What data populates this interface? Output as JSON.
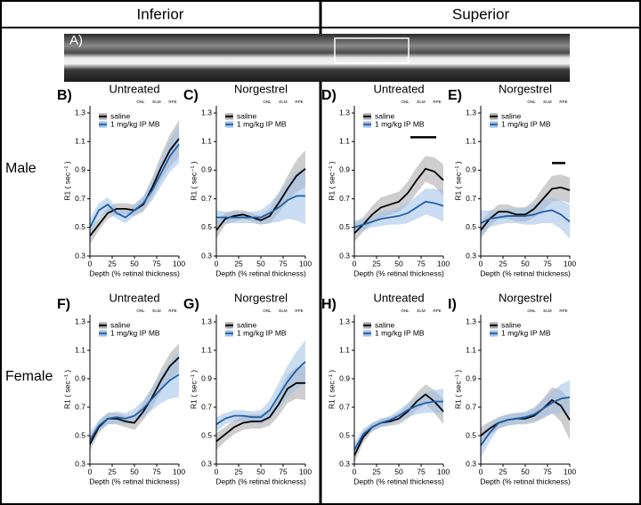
{
  "figure": {
    "columns": [
      "Inferior",
      "Superior"
    ],
    "rows": [
      "Male",
      "Female"
    ],
    "image_label": "A)"
  },
  "chart_data": [
    {
      "type": "line",
      "panel": "B)",
      "title": "Untreated",
      "xlabel": "Depth (% retinal thickness)",
      "ylabel": "R1 ( sec⁻¹ )",
      "x": [
        0,
        10,
        20,
        30,
        40,
        50,
        60,
        70,
        80,
        90,
        100
      ],
      "xlim": [
        0,
        100
      ],
      "xticks": [
        0,
        25,
        50,
        75,
        100
      ],
      "ylim": [
        0.3,
        1.35
      ],
      "yticks": [
        0.3,
        0.5,
        0.7,
        0.9,
        1.1,
        1.3
      ],
      "layers": [
        {
          "text": "ONL",
          "x": 57
        },
        {
          "text": "ELM",
          "x": 75
        },
        {
          "text": "RPE",
          "x": 93
        }
      ],
      "legend": "upper left",
      "series": [
        {
          "name": "saline",
          "color": "#000000",
          "band_color": "#a6a6a6",
          "values": [
            0.44,
            0.52,
            0.6,
            0.63,
            0.63,
            0.62,
            0.66,
            0.78,
            0.92,
            1.04,
            1.12
          ],
          "errors": [
            0.06,
            0.04,
            0.04,
            0.04,
            0.04,
            0.04,
            0.05,
            0.07,
            0.09,
            0.11,
            0.13
          ]
        },
        {
          "name": "1 mg/kg IP MB",
          "color": "#1f5fa8",
          "band_color": "#9fbfe6",
          "values": [
            0.5,
            0.62,
            0.66,
            0.6,
            0.57,
            0.62,
            0.67,
            0.76,
            0.88,
            1.0,
            1.08
          ],
          "errors": [
            0.06,
            0.05,
            0.05,
            0.04,
            0.04,
            0.04,
            0.05,
            0.07,
            0.09,
            0.11,
            0.13
          ]
        }
      ]
    },
    {
      "type": "line",
      "panel": "C)",
      "title": "Norgestrel",
      "xlabel": "Depth (% retinal thickness)",
      "ylabel": "R1 ( sec⁻¹ )",
      "x": [
        0,
        10,
        20,
        30,
        40,
        50,
        60,
        70,
        80,
        90,
        100
      ],
      "xlim": [
        0,
        100
      ],
      "xticks": [
        0,
        25,
        50,
        75,
        100
      ],
      "ylim": [
        0.3,
        1.35
      ],
      "yticks": [
        0.3,
        0.5,
        0.7,
        0.9,
        1.1,
        1.3
      ],
      "layers": [
        {
          "text": "ONL",
          "x": 57
        },
        {
          "text": "ELM",
          "x": 75
        },
        {
          "text": "RPE",
          "x": 93
        }
      ],
      "legend": "upper left",
      "series": [
        {
          "name": "saline",
          "color": "#000000",
          "band_color": "#a6a6a6",
          "values": [
            0.48,
            0.56,
            0.58,
            0.59,
            0.57,
            0.55,
            0.58,
            0.67,
            0.77,
            0.86,
            0.91
          ],
          "errors": [
            0.06,
            0.04,
            0.04,
            0.03,
            0.03,
            0.03,
            0.05,
            0.07,
            0.09,
            0.11,
            0.13
          ]
        },
        {
          "name": "1 mg/kg IP MB",
          "color": "#1f5fa8",
          "band_color": "#9fbfe6",
          "values": [
            0.57,
            0.57,
            0.57,
            0.57,
            0.57,
            0.57,
            0.6,
            0.64,
            0.69,
            0.72,
            0.72
          ],
          "errors": [
            0.05,
            0.04,
            0.04,
            0.04,
            0.04,
            0.05,
            0.07,
            0.1,
            0.13,
            0.17,
            0.2
          ]
        }
      ]
    },
    {
      "type": "line",
      "panel": "D)",
      "title": "Untreated",
      "xlabel": "Depth (% retinal thickness)",
      "ylabel": "R1 ( sec⁻¹ )",
      "x": [
        0,
        10,
        20,
        30,
        40,
        50,
        60,
        70,
        80,
        90,
        100
      ],
      "xlim": [
        0,
        100
      ],
      "xticks": [
        0,
        25,
        50,
        75,
        100
      ],
      "ylim": [
        0.3,
        1.35
      ],
      "yticks": [
        0.3,
        0.5,
        0.7,
        0.9,
        1.1,
        1.3
      ],
      "layers": [
        {
          "text": "ONL",
          "x": 57
        },
        {
          "text": "ELM",
          "x": 75
        },
        {
          "text": "RPE",
          "x": 93
        }
      ],
      "legend": "upper left",
      "significance": [
        {
          "x": [
            63,
            92
          ],
          "y": 1.13
        }
      ],
      "series": [
        {
          "name": "saline",
          "color": "#000000",
          "band_color": "#a6a6a6",
          "values": [
            0.46,
            0.52,
            0.59,
            0.64,
            0.66,
            0.68,
            0.74,
            0.83,
            0.91,
            0.89,
            0.83
          ],
          "errors": [
            0.06,
            0.05,
            0.06,
            0.07,
            0.07,
            0.07,
            0.08,
            0.09,
            0.09,
            0.1,
            0.11
          ]
        },
        {
          "name": "1 mg/kg IP MB",
          "color": "#1f5fa8",
          "band_color": "#9fbfe6",
          "values": [
            0.5,
            0.52,
            0.54,
            0.56,
            0.57,
            0.58,
            0.6,
            0.64,
            0.68,
            0.67,
            0.65
          ],
          "errors": [
            0.05,
            0.04,
            0.04,
            0.05,
            0.05,
            0.06,
            0.07,
            0.08,
            0.09,
            0.1,
            0.11
          ]
        }
      ]
    },
    {
      "type": "line",
      "panel": "E)",
      "title": "Norgestrel",
      "xlabel": "Depth (% retinal thickness)",
      "ylabel": "R1 ( sec⁻¹ )",
      "x": [
        0,
        10,
        20,
        30,
        40,
        50,
        60,
        70,
        80,
        90,
        100
      ],
      "xlim": [
        0,
        100
      ],
      "xticks": [
        0,
        25,
        50,
        75,
        100
      ],
      "ylim": [
        0.3,
        1.35
      ],
      "yticks": [
        0.3,
        0.5,
        0.7,
        0.9,
        1.1,
        1.3
      ],
      "layers": [
        {
          "text": "ONL",
          "x": 57
        },
        {
          "text": "ELM",
          "x": 75
        },
        {
          "text": "RPE",
          "x": 93
        }
      ],
      "legend": "upper left",
      "significance": [
        {
          "x": [
            80,
            95
          ],
          "y": 0.95
        }
      ],
      "series": [
        {
          "name": "saline",
          "color": "#000000",
          "band_color": "#a6a6a6",
          "values": [
            0.48,
            0.56,
            0.61,
            0.61,
            0.59,
            0.59,
            0.63,
            0.7,
            0.77,
            0.78,
            0.76
          ],
          "errors": [
            0.06,
            0.05,
            0.05,
            0.05,
            0.05,
            0.05,
            0.06,
            0.08,
            0.09,
            0.09,
            0.09
          ]
        },
        {
          "name": "1 mg/kg IP MB",
          "color": "#1f5fa8",
          "band_color": "#9fbfe6",
          "values": [
            0.53,
            0.56,
            0.57,
            0.58,
            0.58,
            0.58,
            0.59,
            0.61,
            0.62,
            0.59,
            0.54
          ],
          "errors": [
            0.09,
            0.06,
            0.05,
            0.05,
            0.05,
            0.06,
            0.07,
            0.08,
            0.09,
            0.1,
            0.12
          ]
        }
      ]
    },
    {
      "type": "line",
      "panel": "F)",
      "title": "Untreated",
      "xlabel": "Depth (% retinal thickness)",
      "ylabel": "R1 ( sec⁻¹ )",
      "x": [
        0,
        10,
        20,
        30,
        40,
        50,
        60,
        70,
        80,
        90,
        100
      ],
      "xlim": [
        0,
        100
      ],
      "xticks": [
        0,
        25,
        50,
        75,
        100
      ],
      "ylim": [
        0.3,
        1.35
      ],
      "yticks": [
        0.3,
        0.5,
        0.7,
        0.9,
        1.1,
        1.3
      ],
      "layers": [
        {
          "text": "ONL",
          "x": 57
        },
        {
          "text": "ELM",
          "x": 75
        },
        {
          "text": "RPE",
          "x": 93
        }
      ],
      "legend": "upper left",
      "series": [
        {
          "name": "saline",
          "color": "#000000",
          "band_color": "#a6a6a6",
          "values": [
            0.44,
            0.56,
            0.62,
            0.62,
            0.6,
            0.59,
            0.67,
            0.77,
            0.89,
            0.99,
            1.05
          ],
          "errors": [
            0.05,
            0.04,
            0.04,
            0.04,
            0.04,
            0.05,
            0.06,
            0.07,
            0.08,
            0.09,
            0.1
          ]
        },
        {
          "name": "1 mg/kg IP MB",
          "color": "#1f5fa8",
          "band_color": "#9fbfe6",
          "values": [
            0.47,
            0.57,
            0.62,
            0.63,
            0.62,
            0.64,
            0.69,
            0.76,
            0.83,
            0.89,
            0.93
          ],
          "errors": [
            0.05,
            0.04,
            0.04,
            0.04,
            0.04,
            0.05,
            0.06,
            0.08,
            0.1,
            0.13,
            0.16
          ]
        }
      ]
    },
    {
      "type": "line",
      "panel": "G)",
      "title": "Norgestrel",
      "xlabel": "Depth (% retinal thickness)",
      "ylabel": "R1 ( sec⁻¹ )",
      "x": [
        0,
        10,
        20,
        30,
        40,
        50,
        60,
        70,
        80,
        90,
        100
      ],
      "xlim": [
        0,
        100
      ],
      "xticks": [
        0,
        25,
        50,
        75,
        100
      ],
      "ylim": [
        0.3,
        1.35
      ],
      "yticks": [
        0.3,
        0.5,
        0.7,
        0.9,
        1.1,
        1.3
      ],
      "layers": [
        {
          "text": "ONL",
          "x": 57
        },
        {
          "text": "ELM",
          "x": 75
        },
        {
          "text": "RPE",
          "x": 93
        }
      ],
      "legend": "upper left",
      "series": [
        {
          "name": "saline",
          "color": "#000000",
          "band_color": "#a6a6a6",
          "values": [
            0.46,
            0.51,
            0.56,
            0.59,
            0.6,
            0.6,
            0.63,
            0.72,
            0.83,
            0.87,
            0.87
          ],
          "errors": [
            0.06,
            0.05,
            0.05,
            0.05,
            0.05,
            0.05,
            0.06,
            0.08,
            0.1,
            0.11,
            0.12
          ]
        },
        {
          "name": "1 mg/kg IP MB",
          "color": "#1f5fa8",
          "band_color": "#9fbfe6",
          "values": [
            0.58,
            0.62,
            0.64,
            0.64,
            0.63,
            0.63,
            0.68,
            0.78,
            0.88,
            0.96,
            1.02
          ],
          "errors": [
            0.05,
            0.04,
            0.04,
            0.04,
            0.04,
            0.05,
            0.07,
            0.09,
            0.11,
            0.13,
            0.15
          ]
        }
      ]
    },
    {
      "type": "line",
      "panel": "H)",
      "title": "Untreated",
      "xlabel": "Depth (% retinal thickness)",
      "ylabel": "R1 ( sec⁻¹ )",
      "x": [
        0,
        10,
        20,
        30,
        40,
        50,
        60,
        70,
        80,
        90,
        100
      ],
      "xlim": [
        0,
        100
      ],
      "xticks": [
        0,
        25,
        50,
        75,
        100
      ],
      "ylim": [
        0.3,
        1.35
      ],
      "yticks": [
        0.3,
        0.5,
        0.7,
        0.9,
        1.1,
        1.3
      ],
      "layers": [
        {
          "text": "ONL",
          "x": 57
        },
        {
          "text": "ELM",
          "x": 75
        },
        {
          "text": "RPE",
          "x": 93
        }
      ],
      "legend": "upper left",
      "series": [
        {
          "name": "saline",
          "color": "#000000",
          "band_color": "#a6a6a6",
          "values": [
            0.36,
            0.49,
            0.56,
            0.59,
            0.6,
            0.62,
            0.67,
            0.74,
            0.79,
            0.74,
            0.67
          ],
          "errors": [
            0.05,
            0.04,
            0.03,
            0.03,
            0.03,
            0.04,
            0.05,
            0.06,
            0.07,
            0.08,
            0.09
          ]
        },
        {
          "name": "1 mg/kg IP MB",
          "color": "#1f5fa8",
          "band_color": "#9fbfe6",
          "values": [
            0.4,
            0.51,
            0.56,
            0.59,
            0.61,
            0.64,
            0.68,
            0.71,
            0.73,
            0.74,
            0.74
          ],
          "errors": [
            0.05,
            0.04,
            0.03,
            0.03,
            0.03,
            0.04,
            0.05,
            0.06,
            0.07,
            0.08,
            0.09
          ]
        }
      ]
    },
    {
      "type": "line",
      "panel": "I)",
      "title": "Norgestrel",
      "xlabel": "Depth (% retinal thickness)",
      "ylabel": "R1 ( sec⁻¹ )",
      "x": [
        0,
        10,
        20,
        30,
        40,
        50,
        60,
        70,
        80,
        90,
        100
      ],
      "xlim": [
        0,
        100
      ],
      "xticks": [
        0,
        25,
        50,
        75,
        100
      ],
      "ylim": [
        0.3,
        1.35
      ],
      "yticks": [
        0.3,
        0.5,
        0.7,
        0.9,
        1.1,
        1.3
      ],
      "layers": [
        {
          "text": "ONL",
          "x": 57
        },
        {
          "text": "ELM",
          "x": 75
        },
        {
          "text": "RPE",
          "x": 93
        }
      ],
      "legend": "upper left",
      "series": [
        {
          "name": "saline",
          "color": "#000000",
          "band_color": "#a6a6a6",
          "values": [
            0.5,
            0.55,
            0.59,
            0.61,
            0.62,
            0.62,
            0.64,
            0.69,
            0.75,
            0.71,
            0.61
          ],
          "errors": [
            0.06,
            0.05,
            0.04,
            0.04,
            0.04,
            0.04,
            0.05,
            0.07,
            0.09,
            0.11,
            0.14
          ]
        },
        {
          "name": "1 mg/kg IP MB",
          "color": "#1f5fa8",
          "band_color": "#9fbfe6",
          "values": [
            0.43,
            0.52,
            0.59,
            0.61,
            0.62,
            0.63,
            0.65,
            0.69,
            0.73,
            0.76,
            0.77
          ],
          "errors": [
            0.09,
            0.06,
            0.04,
            0.04,
            0.04,
            0.04,
            0.05,
            0.06,
            0.08,
            0.1,
            0.12
          ]
        }
      ]
    }
  ]
}
